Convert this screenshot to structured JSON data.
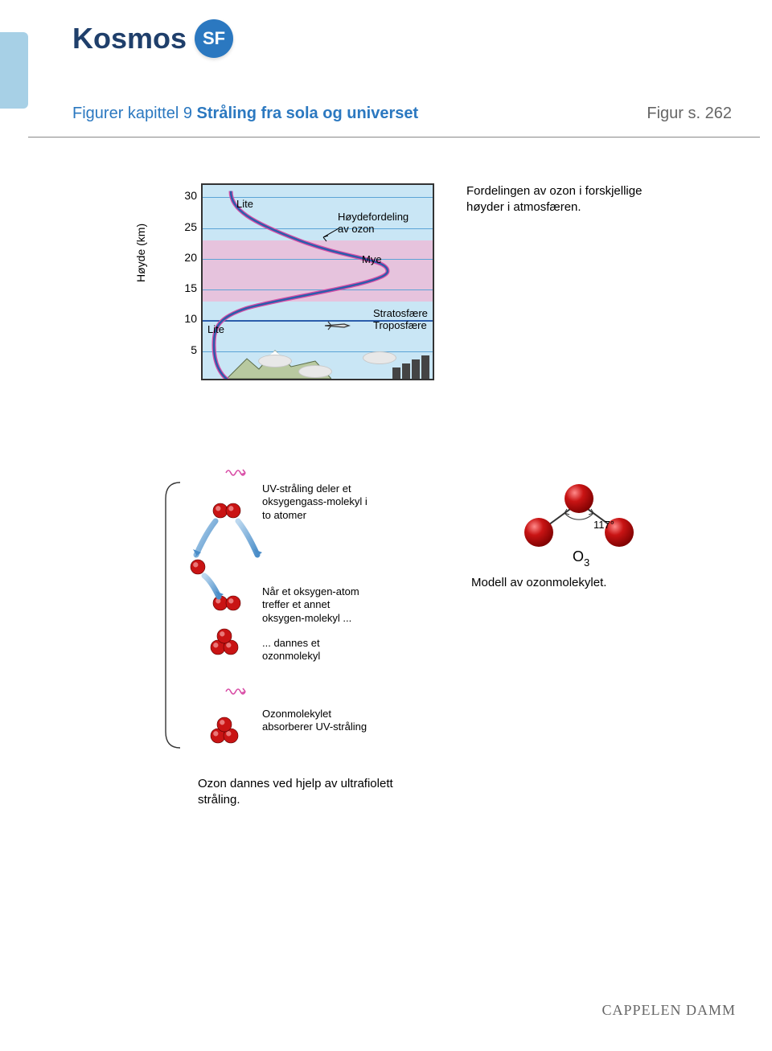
{
  "colors": {
    "tab": "#a7d0e6",
    "brand_blue": "#2b78c0",
    "brand_dark": "#1f3f6b",
    "sky_blue": "#c9e6f5",
    "pink_band": "#e6c3dd",
    "hline_blue": "#5ba3d6",
    "curve_main": "#2b5dab",
    "curve_highlight": "#d94fa7",
    "atom": "#c91414",
    "atom_hi": "#ffbaba",
    "uv": "#d94fa7",
    "arrow_blue": "#4a8dc8"
  },
  "brand": {
    "name": "Kosmos",
    "badge": "SF"
  },
  "chapter": {
    "prefix": "Figurer kapittel 9",
    "title": "Stråling fra sola og universet",
    "page_ref": "Figur s. 262"
  },
  "ozone_profile": {
    "y_axis_label": "Høyde (km)",
    "y_ticks": [
      30,
      25,
      20,
      15,
      10,
      5
    ],
    "y_max": 32,
    "pink_bands": [
      {
        "from_km": 23,
        "to_km": 13
      }
    ],
    "boundary_km": 10,
    "labels": {
      "lite_top": "Lite",
      "lite_bottom": "Lite",
      "curve_label": "Høydefordeling\nav ozon",
      "mye": "Mye",
      "stratosphere": "Stratosfære",
      "troposphere": "Troposfære"
    },
    "caption": "Fordelingen av ozon i forskjellige høyder i atmosfæren."
  },
  "ozone_formation": {
    "steps": [
      "UV-stråling deler et oksygengass-molekyl i to atomer",
      "Når et oksygen-atom treffer et annet oksygen-molekyl ...",
      "... dannes et ozonmolekyl",
      "Ozonmolekylet absorberer UV-stråling"
    ],
    "caption": "Ozon dannes ved hjelp av ultrafiolett stråling."
  },
  "ozone_molecule": {
    "angle_label": "117°",
    "formula": "O",
    "formula_sub": "3",
    "caption": "Modell av ozonmolekylet."
  },
  "publisher": "CAPPELEN DAMM"
}
